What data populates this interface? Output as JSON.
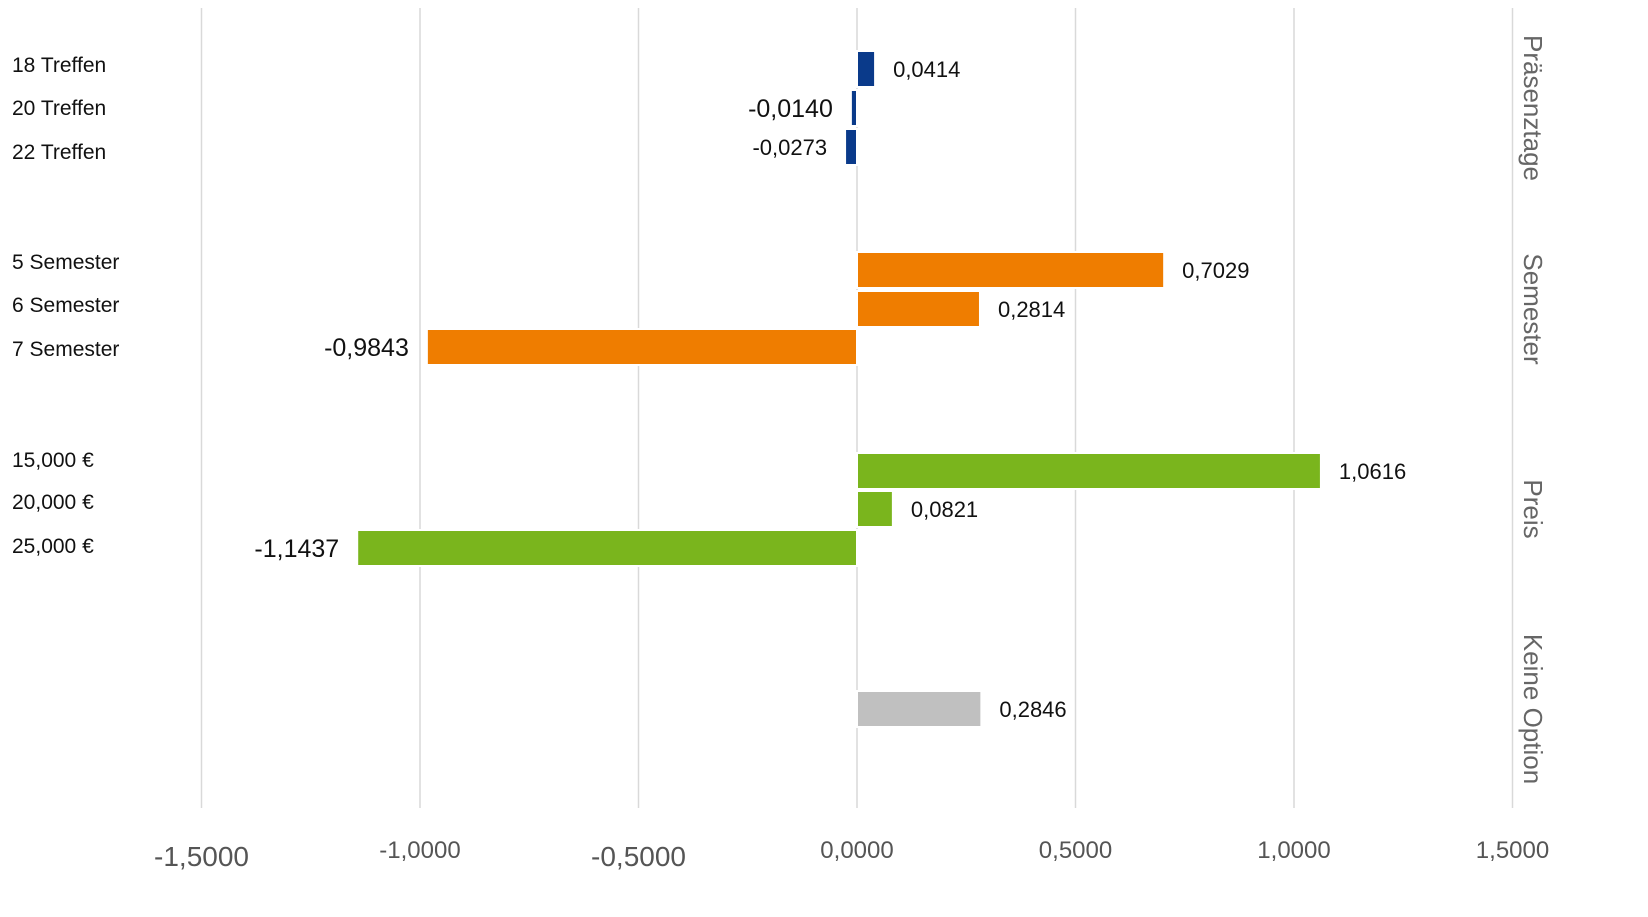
{
  "chart_data": {
    "type": "bar",
    "orientation": "horizontal",
    "title": "",
    "xlabel": "",
    "ylabel": "",
    "xlim": [
      -1.5,
      1.5
    ],
    "x_ticks": [
      "-1,5000",
      "-1,0000",
      "-0,5000",
      "0,0000",
      "0,5000",
      "1,0000",
      "1,5000"
    ],
    "x_tick_values": [
      -1.5,
      -1.0,
      -0.5,
      0.0,
      0.5,
      1.0,
      1.5
    ],
    "grid": "vertical",
    "groups": [
      {
        "name": "Präsenztage",
        "color": "#0a3a8a",
        "categories": [
          "18 Treffen",
          "20 Treffen",
          "22 Treffen"
        ],
        "values": [
          0.0414,
          -0.014,
          -0.0273
        ],
        "labels": [
          "0,0414",
          "-0,0140",
          "-0,0273"
        ]
      },
      {
        "name": "Semester",
        "color": "#ef7d00",
        "categories": [
          "5 Semester",
          "6 Semester",
          "7 Semester"
        ],
        "values": [
          0.7029,
          0.2814,
          -0.9843
        ],
        "labels": [
          "0,7029",
          "0,2814",
          "-0,9843"
        ]
      },
      {
        "name": "Preis",
        "color": "#7ab51d",
        "categories": [
          "15,000 €",
          "20,000 €",
          "25,000 €"
        ],
        "values": [
          1.0616,
          0.0821,
          -1.1437
        ],
        "labels": [
          "1,0616",
          "0,0821",
          "-1,1437"
        ]
      },
      {
        "name": "Keine Option",
        "color": "#c0c0c0",
        "categories": [
          ""
        ],
        "values": [
          0.2846
        ],
        "labels": [
          "0,2846"
        ]
      }
    ]
  }
}
